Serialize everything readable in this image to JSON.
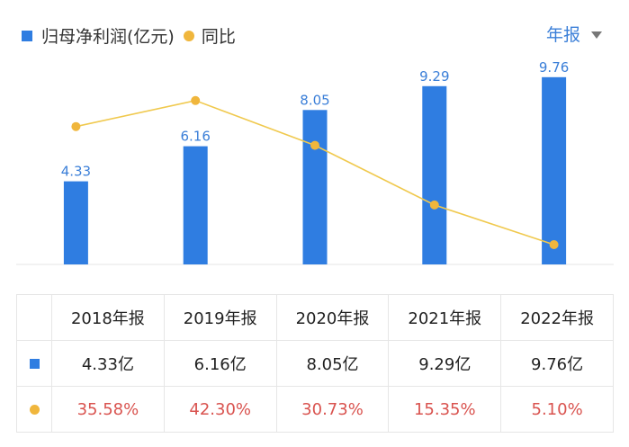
{
  "legend": {
    "profit_label": "归母净利润(亿元)",
    "yoy_label": "同比"
  },
  "period_selector": {
    "label": "年报"
  },
  "colors": {
    "bar": "#2f7de1",
    "line": "#f0b63c",
    "bar_label": "#3b7fd8",
    "negative_text": "#d9534f"
  },
  "chart_data": {
    "type": "bar",
    "categories": [
      "2018年报",
      "2019年报",
      "2020年报",
      "2021年报",
      "2022年报"
    ],
    "series": [
      {
        "name": "归母净利润(亿元)",
        "type": "bar",
        "values": [
          4.33,
          6.16,
          8.05,
          9.29,
          9.76
        ],
        "labels": [
          "4.33",
          "6.16",
          "8.05",
          "9.29",
          "9.76"
        ]
      },
      {
        "name": "同比",
        "type": "line",
        "values": [
          35.58,
          42.3,
          30.73,
          15.35,
          5.1
        ]
      }
    ],
    "ylim_bar": [
      0,
      10.5
    ],
    "ylim_line": [
      0,
      52
    ]
  },
  "table": {
    "headers": [
      "2018年报",
      "2019年报",
      "2020年报",
      "2021年报",
      "2022年报"
    ],
    "profit_row": [
      "4.33亿",
      "6.16亿",
      "8.05亿",
      "9.29亿",
      "9.76亿"
    ],
    "yoy_row": [
      "35.58%",
      "42.30%",
      "30.73%",
      "15.35%",
      "5.10%"
    ]
  }
}
